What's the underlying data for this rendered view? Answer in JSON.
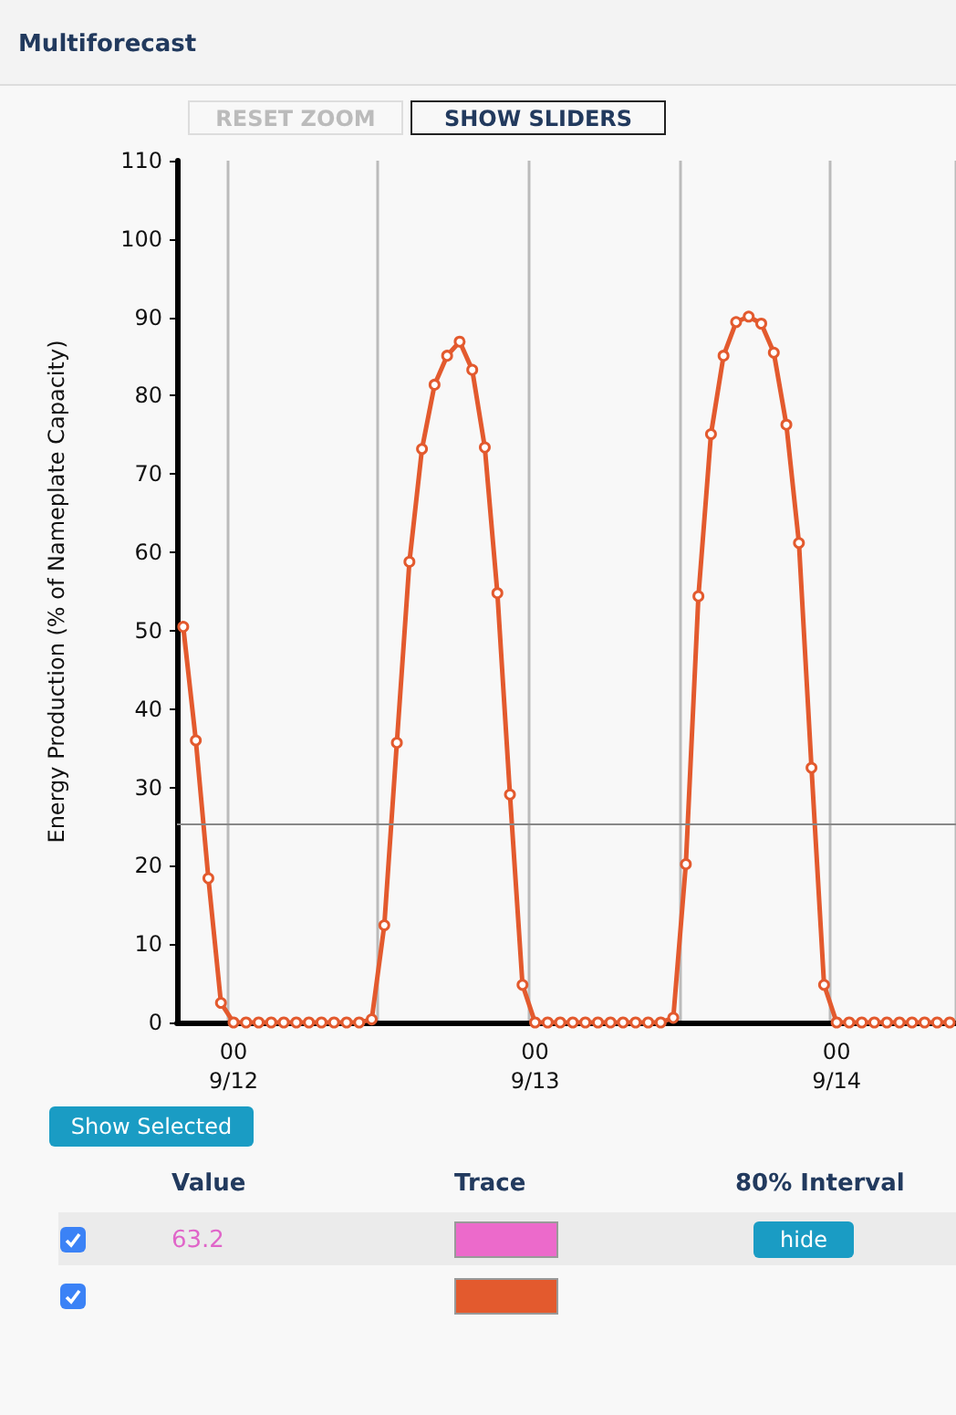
{
  "chart_data": {
    "type": "line",
    "title": "Multiforecast",
    "ylabel": "Energy Production (% of Nameplate Capacity)",
    "categories": [
      null,
      null,
      null,
      null,
      "00\n9/12",
      null,
      null,
      null,
      null,
      null,
      null,
      null,
      null,
      null,
      null,
      null,
      null,
      null,
      null,
      null,
      null,
      null,
      null,
      null,
      null,
      null,
      null,
      null,
      "00\n9/13",
      null,
      null,
      null,
      null,
      null,
      null,
      null,
      null,
      null,
      null,
      null,
      null,
      null,
      null,
      null,
      null,
      null,
      null,
      null,
      null,
      null,
      null,
      null,
      "00\n9/14",
      null,
      null,
      null,
      null,
      null,
      null,
      null,
      null,
      null
    ],
    "series": [
      {
        "color": "#e35a2e",
        "values": [
          50.5,
          36,
          18.4,
          2.5,
          0,
          0,
          0,
          0,
          0,
          0,
          0,
          0,
          0,
          0,
          0,
          0.4,
          12.4,
          35.7,
          58.8,
          73.2,
          81.4,
          85.1,
          86.9,
          83.3,
          73.4,
          54.8,
          29.1,
          4.8,
          0,
          0,
          0,
          0,
          0,
          0,
          0,
          0,
          0,
          0,
          0,
          0.6,
          20.2,
          54.4,
          75.1,
          85.1,
          89.4,
          90.1,
          89.2,
          85.5,
          76.3,
          61.2,
          32.5,
          4.8,
          0,
          0,
          0,
          0,
          0,
          0,
          0,
          0,
          0,
          0
        ]
      }
    ],
    "ylim": [
      0,
      110
    ],
    "yticks": [
      0,
      10,
      20,
      30,
      40,
      50,
      60,
      70,
      80,
      90,
      100,
      110
    ],
    "ref_lines": [
      {
        "axis": "y",
        "value": 25.4,
        "color": "#888888"
      }
    ],
    "grid": "x",
    "marker": "circle",
    "line_style": "solid",
    "annotations": [
      "RESET ZOOM",
      "SHOW SLIDERS",
      "Show Selected",
      "Value",
      "Trace",
      "80% Interval",
      "63.2",
      "hide"
    ]
  }
}
